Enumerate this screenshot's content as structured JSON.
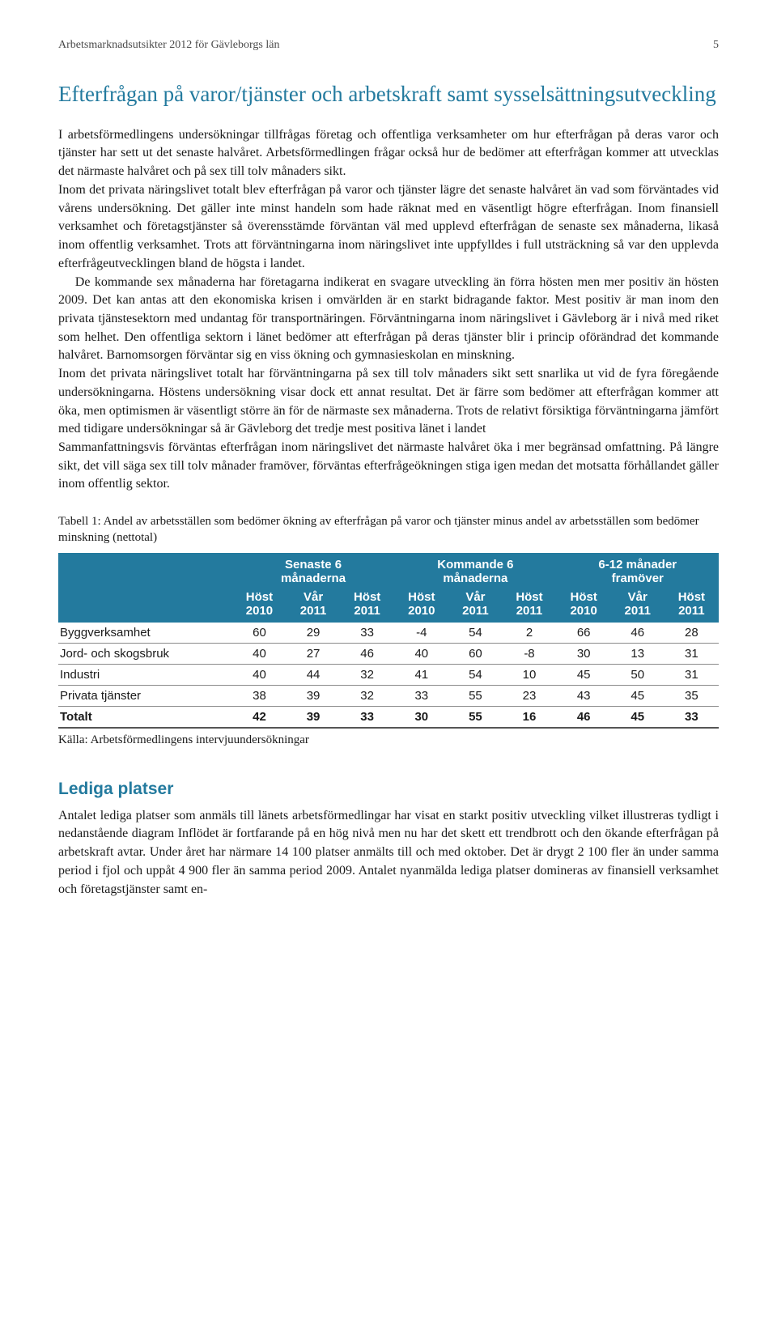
{
  "header": {
    "title": "Arbetsmarknadsutsikter 2012 för Gävleborgs län",
    "page_number": "5"
  },
  "section": {
    "heading": "Efterfrågan på varor/tjänster och arbetskraft samt sysselsättningsutveckling",
    "p1": "I arbetsförmedlingens undersökningar tillfrågas företag och offentliga verksamheter om hur efterfrågan på deras varor och tjänster har sett ut det senaste halvåret. Arbetsförmedlingen frågar också hur de bedömer att efterfrågan kommer att utvecklas det närmaste halvåret och på sex till tolv månaders sikt.",
    "p2": "Inom det privata näringslivet totalt blev efterfrågan på varor och tjänster lägre det senaste halvåret än vad som förväntades vid vårens undersökning. Det gäller inte minst handeln som hade räknat med en väsentligt högre efterfrågan. Inom finansiell verksamhet och företagstjänster så överensstämde förväntan väl med upplevd efterfrågan de senaste sex månaderna, likaså inom offentlig verksamhet. Trots att förväntningarna inom näringslivet inte uppfylldes i full utsträckning så var den upplevda efterfrågeutvecklingen bland de högsta i landet.",
    "p3": "De kommande sex månaderna har företagarna indikerat en svagare utveckling än förra hösten men mer positiv än hösten 2009. Det kan antas att den ekonomiska krisen i omvärlden är en starkt bidragande faktor. Mest positiv är man inom den privata tjänstesektorn med undantag för transportnäringen. Förväntningarna inom näringslivet i Gävleborg är i nivå med riket som helhet. Den offentliga sektorn i länet bedömer att efterfrågan på deras tjänster blir i princip oförändrad det kommande halvåret. Barnomsorgen förväntar sig en viss ökning och gymnasieskolan en minskning.",
    "p4": "Inom det privata näringslivet totalt har förväntningarna på sex till tolv månaders sikt sett snarlika ut vid de fyra föregående undersökningarna. Höstens undersökning visar dock ett annat resultat. Det är färre som bedömer att efterfrågan kommer att öka, men optimismen är väsentligt större än för de närmaste sex månaderna. Trots de relativt försiktiga förväntningarna jämfört med tidigare undersökningar så är Gävleborg det tredje mest positiva länet i landet",
    "p5": "Sammanfattningsvis förväntas efterfrågan inom näringslivet det närmaste halvåret öka i mer begränsad omfattning. På längre sikt, det vill säga sex till tolv månader framöver, förväntas efterfrågeökningen stiga igen medan det motsatta förhållandet gäller inom offentlig sektor."
  },
  "table": {
    "caption": "Tabell 1: Andel av arbetsställen som bedömer ökning av efterfrågan på varor och tjänster minus andel av arbetsställen som bedömer minskning (nettotal)",
    "groups": [
      {
        "line1": "Senaste 6",
        "line2": "månaderna"
      },
      {
        "line1": "Kommande 6",
        "line2": "månaderna"
      },
      {
        "line1": "6-12 månader",
        "line2": "framöver"
      }
    ],
    "periods": [
      "Höst",
      "Vår",
      "Höst",
      "Höst",
      "Vår",
      "Höst",
      "Höst",
      "Vår",
      "Höst"
    ],
    "years": [
      "2010",
      "2011",
      "2011",
      "2010",
      "2011",
      "2011",
      "2010",
      "2011",
      "2011"
    ],
    "rows": [
      {
        "label": "Byggverksamhet",
        "v": [
          "60",
          "29",
          "33",
          "-4",
          "54",
          "2",
          "66",
          "46",
          "28"
        ]
      },
      {
        "label": "Jord- och skogsbruk",
        "v": [
          "40",
          "27",
          "46",
          "40",
          "60",
          "-8",
          "30",
          "13",
          "31"
        ]
      },
      {
        "label": "Industri",
        "v": [
          "40",
          "44",
          "32",
          "41",
          "54",
          "10",
          "45",
          "50",
          "31"
        ]
      },
      {
        "label": "Privata tjänster",
        "v": [
          "38",
          "39",
          "32",
          "33",
          "55",
          "23",
          "43",
          "45",
          "35"
        ]
      }
    ],
    "total": {
      "label": "Totalt",
      "v": [
        "42",
        "39",
        "33",
        "30",
        "55",
        "16",
        "46",
        "45",
        "33"
      ]
    },
    "source": "Källa: Arbetsförmedlingens intervjuundersökningar",
    "style": {
      "header_bg": "#237a9e",
      "header_fg": "#ffffff",
      "row_border": "#8a8a8a",
      "font_family": "Arial, Helvetica, sans-serif"
    }
  },
  "subsection": {
    "heading": "Lediga platser",
    "p1": "Antalet lediga platser som anmäls till länets arbetsförmedlingar har visat en starkt positiv utveckling vilket illustreras tydligt i nedanstående diagram Inflödet är fortfarande på en hög nivå men nu har det skett ett trendbrott och den ökande efterfrågan på arbetskraft avtar. Under året har närmare 14 100 platser anmälts till och med oktober. Det är drygt 2 100 fler än under samma period i fjol och uppåt 4 900 fler än samma period 2009. Antalet nyanmälda lediga platser domineras av finansiell verksamhet och företagstjänster samt en-"
  }
}
